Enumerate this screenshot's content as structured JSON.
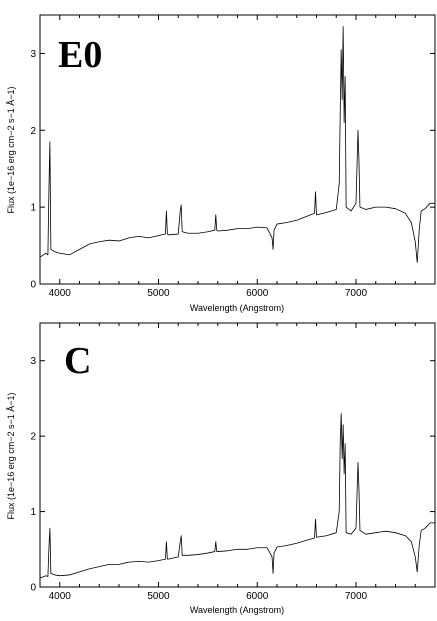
{
  "chart_data": [
    {
      "type": "line",
      "panel_label": "E0",
      "xlabel": "Wavelength (Angstrom)",
      "ylabel": "Flux (1e−16 erg cm−2 s−1 Å−1)",
      "xlim": [
        3800,
        7800
      ],
      "ylim": [
        0,
        3.5
      ],
      "xticks": [
        4000,
        5000,
        6000,
        7000
      ],
      "yticks": [
        0,
        1,
        2,
        3
      ],
      "grid": false,
      "series": [
        {
          "x": [
            3800,
            3860,
            3880,
            3890,
            3900,
            3910,
            3950,
            4000,
            4100,
            4200,
            4300,
            4400,
            4500,
            4600,
            4700,
            4800,
            4900,
            5000,
            5070,
            5080,
            5090,
            5100,
            5200,
            5220,
            5230,
            5240,
            5300,
            5400,
            5500,
            5570,
            5580,
            5590,
            5600,
            5700,
            5800,
            5900,
            6000,
            6100,
            6150,
            6160,
            6170,
            6200,
            6300,
            6400,
            6500,
            6580,
            6590,
            6600,
            6700,
            6800,
            6830,
            6840,
            6850,
            6860,
            6870,
            6880,
            6890,
            6900,
            6950,
            7000,
            7020,
            7030,
            7040,
            7100,
            7200,
            7300,
            7400,
            7500,
            7560,
            7600,
            7620,
            7640,
            7660,
            7700,
            7750,
            7800
          ],
          "values": [
            0.35,
            0.4,
            0.38,
            1.2,
            1.85,
            0.45,
            0.42,
            0.4,
            0.38,
            0.45,
            0.52,
            0.55,
            0.57,
            0.56,
            0.6,
            0.62,
            0.6,
            0.63,
            0.65,
            0.95,
            0.65,
            0.64,
            0.65,
            0.95,
            1.03,
            0.68,
            0.66,
            0.66,
            0.68,
            0.7,
            0.9,
            0.7,
            0.69,
            0.7,
            0.72,
            0.72,
            0.74,
            0.73,
            0.6,
            0.45,
            0.7,
            0.78,
            0.8,
            0.83,
            0.88,
            0.92,
            1.2,
            0.9,
            0.93,
            0.97,
            1.3,
            2.2,
            3.05,
            2.4,
            3.35,
            2.1,
            2.7,
            1.0,
            0.95,
            1.05,
            2.0,
            1.6,
            1.0,
            0.97,
            1.0,
            1.0,
            0.98,
            0.92,
            0.8,
            0.55,
            0.28,
            0.7,
            0.95,
            0.98,
            1.05,
            1.05
          ]
        }
      ]
    },
    {
      "type": "line",
      "panel_label": "C",
      "xlabel": "Wavelength (Angstrom)",
      "ylabel": "Flux (1e−16 erg cm−2 s−1 Å−1)",
      "xlim": [
        3800,
        7800
      ],
      "ylim": [
        0,
        3.5
      ],
      "xticks": [
        4000,
        5000,
        6000,
        7000
      ],
      "yticks": [
        0,
        1,
        2,
        3
      ],
      "grid": false,
      "series": [
        {
          "x": [
            3800,
            3860,
            3880,
            3890,
            3900,
            3910,
            3950,
            4000,
            4100,
            4200,
            4300,
            4400,
            4500,
            4600,
            4700,
            4800,
            4900,
            5000,
            5070,
            5080,
            5090,
            5100,
            5200,
            5220,
            5230,
            5240,
            5300,
            5400,
            5500,
            5570,
            5580,
            5590,
            5600,
            5700,
            5800,
            5900,
            6000,
            6100,
            6150,
            6160,
            6170,
            6200,
            6300,
            6400,
            6500,
            6580,
            6590,
            6600,
            6700,
            6800,
            6830,
            6840,
            6850,
            6860,
            6870,
            6880,
            6890,
            6900,
            6950,
            7000,
            7020,
            7030,
            7040,
            7100,
            7200,
            7300,
            7400,
            7500,
            7560,
            7600,
            7620,
            7640,
            7660,
            7700,
            7750,
            7800
          ],
          "values": [
            0.12,
            0.15,
            0.14,
            0.5,
            0.78,
            0.18,
            0.16,
            0.15,
            0.16,
            0.2,
            0.24,
            0.27,
            0.3,
            0.3,
            0.33,
            0.34,
            0.33,
            0.35,
            0.37,
            0.6,
            0.37,
            0.37,
            0.4,
            0.6,
            0.68,
            0.42,
            0.42,
            0.43,
            0.45,
            0.47,
            0.6,
            0.47,
            0.47,
            0.48,
            0.5,
            0.5,
            0.52,
            0.52,
            0.4,
            0.18,
            0.45,
            0.53,
            0.55,
            0.58,
            0.62,
            0.65,
            0.9,
            0.66,
            0.68,
            0.72,
            1.0,
            1.9,
            2.3,
            1.7,
            2.15,
            1.5,
            1.9,
            0.72,
            0.7,
            0.78,
            1.65,
            1.3,
            0.75,
            0.7,
            0.72,
            0.74,
            0.72,
            0.68,
            0.6,
            0.4,
            0.2,
            0.55,
            0.75,
            0.78,
            0.85,
            0.85
          ]
        }
      ]
    }
  ]
}
